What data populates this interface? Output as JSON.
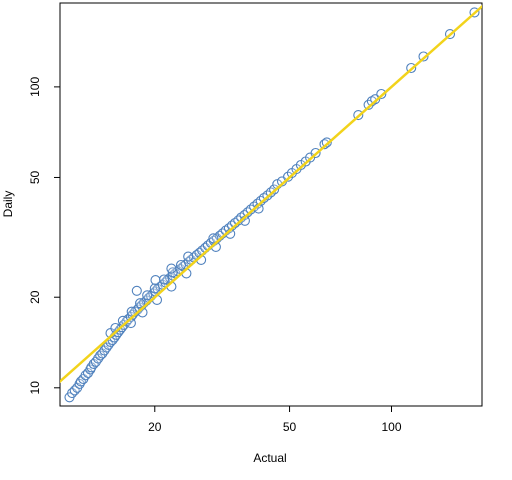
{
  "chart_data": {
    "type": "scatter",
    "title": "",
    "xlabel": "Actual",
    "ylabel": "Daily",
    "x_scale": "log",
    "y_scale": "log",
    "xlim": [
      10.5,
      185
    ],
    "ylim": [
      8.7,
      190
    ],
    "x_ticks": [
      20,
      50,
      100
    ],
    "y_ticks": [
      10,
      20,
      50,
      100
    ],
    "grid": false,
    "colors": {
      "points": "#4f81bd",
      "fit_line": "#f2d31b",
      "axis": "#000000"
    },
    "fit_line": {
      "slope": 1,
      "intercept": 0
    },
    "points": [
      {
        "x": 11.2,
        "y": 9.3
      },
      {
        "x": 11.4,
        "y": 9.6
      },
      {
        "x": 11.6,
        "y": 9.8
      },
      {
        "x": 11.8,
        "y": 10.0
      },
      {
        "x": 12.0,
        "y": 10.3
      },
      {
        "x": 12.1,
        "y": 10.5
      },
      {
        "x": 12.3,
        "y": 10.7
      },
      {
        "x": 12.5,
        "y": 11.0
      },
      {
        "x": 12.7,
        "y": 11.2
      },
      {
        "x": 12.9,
        "y": 11.5
      },
      {
        "x": 13.0,
        "y": 11.7
      },
      {
        "x": 13.2,
        "y": 12.0
      },
      {
        "x": 13.4,
        "y": 12.2
      },
      {
        "x": 13.6,
        "y": 12.5
      },
      {
        "x": 13.8,
        "y": 12.8
      },
      {
        "x": 14.0,
        "y": 13.0
      },
      {
        "x": 14.2,
        "y": 13.3
      },
      {
        "x": 14.4,
        "y": 13.6
      },
      {
        "x": 14.6,
        "y": 13.9
      },
      {
        "x": 14.8,
        "y": 14.2
      },
      {
        "x": 15.0,
        "y": 14.4
      },
      {
        "x": 15.2,
        "y": 14.7
      },
      {
        "x": 15.4,
        "y": 15.0
      },
      {
        "x": 15.6,
        "y": 15.3
      },
      {
        "x": 15.8,
        "y": 15.6
      },
      {
        "x": 16.0,
        "y": 15.9
      },
      {
        "x": 16.2,
        "y": 16.2
      },
      {
        "x": 16.5,
        "y": 16.6
      },
      {
        "x": 16.7,
        "y": 16.9
      },
      {
        "x": 17.0,
        "y": 17.2
      },
      {
        "x": 17.2,
        "y": 17.5
      },
      {
        "x": 17.5,
        "y": 17.9
      },
      {
        "x": 17.8,
        "y": 18.2
      },
      {
        "x": 18.0,
        "y": 18.5
      },
      {
        "x": 18.3,
        "y": 18.8
      },
      {
        "x": 18.6,
        "y": 19.2
      },
      {
        "x": 18.9,
        "y": 19.5
      },
      {
        "x": 19.2,
        "y": 19.9
      },
      {
        "x": 19.5,
        "y": 20.2
      },
      {
        "x": 19.8,
        "y": 20.6
      },
      {
        "x": 20.1,
        "y": 20.9
      },
      {
        "x": 20.4,
        "y": 21.3
      },
      {
        "x": 20.8,
        "y": 21.7
      },
      {
        "x": 21.1,
        "y": 22.0
      },
      {
        "x": 21.5,
        "y": 22.4
      },
      {
        "x": 21.8,
        "y": 22.8
      },
      {
        "x": 22.2,
        "y": 23.2
      },
      {
        "x": 22.6,
        "y": 23.6
      },
      {
        "x": 23.0,
        "y": 24.0
      },
      {
        "x": 23.4,
        "y": 24.4
      },
      {
        "x": 23.8,
        "y": 24.8
      },
      {
        "x": 24.3,
        "y": 25.3
      },
      {
        "x": 24.7,
        "y": 25.7
      },
      {
        "x": 25.2,
        "y": 26.2
      },
      {
        "x": 25.6,
        "y": 26.6
      },
      {
        "x": 26.1,
        "y": 27.1
      },
      {
        "x": 26.6,
        "y": 27.6
      },
      {
        "x": 27.1,
        "y": 28.1
      },
      {
        "x": 27.6,
        "y": 28.6
      },
      {
        "x": 28.2,
        "y": 29.2
      },
      {
        "x": 28.7,
        "y": 29.7
      },
      {
        "x": 29.3,
        "y": 30.3
      },
      {
        "x": 29.9,
        "y": 30.8
      },
      {
        "x": 30.5,
        "y": 31.4
      },
      {
        "x": 31.1,
        "y": 32.0
      },
      {
        "x": 31.7,
        "y": 32.6
      },
      {
        "x": 32.4,
        "y": 33.3
      },
      {
        "x": 33.1,
        "y": 33.9
      },
      {
        "x": 33.8,
        "y": 34.6
      },
      {
        "x": 34.5,
        "y": 35.3
      },
      {
        "x": 35.3,
        "y": 36.0
      },
      {
        "x": 36.0,
        "y": 36.8
      },
      {
        "x": 36.8,
        "y": 37.5
      },
      {
        "x": 37.6,
        "y": 38.3
      },
      {
        "x": 38.4,
        "y": 39.1
      },
      {
        "x": 39.3,
        "y": 40.0
      },
      {
        "x": 40.2,
        "y": 40.9
      },
      {
        "x": 41.1,
        "y": 41.8
      },
      {
        "x": 42.0,
        "y": 42.7
      },
      {
        "x": 43.0,
        "y": 43.6
      },
      {
        "x": 44.0,
        "y": 44.6
      },
      {
        "x": 45.0,
        "y": 45.6
      },
      {
        "x": 14.8,
        "y": 15.2
      },
      {
        "x": 15.3,
        "y": 15.8
      },
      {
        "x": 16.1,
        "y": 16.7
      },
      {
        "x": 17.1,
        "y": 17.9
      },
      {
        "x": 18.1,
        "y": 19.1
      },
      {
        "x": 19.0,
        "y": 20.3
      },
      {
        "x": 20.0,
        "y": 21.4
      },
      {
        "x": 21.3,
        "y": 22.9
      },
      {
        "x": 22.6,
        "y": 24.2
      },
      {
        "x": 23.9,
        "y": 25.6
      },
      {
        "x": 17.0,
        "y": 16.4
      },
      {
        "x": 18.4,
        "y": 17.8
      },
      {
        "x": 20.3,
        "y": 19.6
      },
      {
        "x": 22.4,
        "y": 21.7
      },
      {
        "x": 24.8,
        "y": 24.0
      },
      {
        "x": 27.4,
        "y": 26.6
      },
      {
        "x": 30.3,
        "y": 29.4
      },
      {
        "x": 33.4,
        "y": 32.5
      },
      {
        "x": 36.9,
        "y": 35.9
      },
      {
        "x": 40.5,
        "y": 39.4
      },
      {
        "x": 17.7,
        "y": 21.0
      },
      {
        "x": 20.1,
        "y": 22.8
      },
      {
        "x": 22.4,
        "y": 24.9
      },
      {
        "x": 25.1,
        "y": 27.3
      },
      {
        "x": 29.8,
        "y": 31.4
      },
      {
        "x": 46.0,
        "y": 47.5
      },
      {
        "x": 47.5,
        "y": 48.5
      },
      {
        "x": 49.5,
        "y": 50.3
      },
      {
        "x": 50.8,
        "y": 51.7
      },
      {
        "x": 52.4,
        "y": 53.3
      },
      {
        "x": 54.0,
        "y": 55.0
      },
      {
        "x": 55.8,
        "y": 56.5
      },
      {
        "x": 57.5,
        "y": 58.2
      },
      {
        "x": 59.7,
        "y": 60.3
      },
      {
        "x": 63.4,
        "y": 64.5
      },
      {
        "x": 64.4,
        "y": 65.4
      },
      {
        "x": 79.8,
        "y": 80.6
      },
      {
        "x": 85.6,
        "y": 87.2
      },
      {
        "x": 87.5,
        "y": 89.6
      },
      {
        "x": 89.5,
        "y": 91.0
      },
      {
        "x": 93.3,
        "y": 94.7
      },
      {
        "x": 114.3,
        "y": 115.5
      },
      {
        "x": 124.3,
        "y": 126.2
      },
      {
        "x": 148.8,
        "y": 149.8
      },
      {
        "x": 175.8,
        "y": 176.8
      }
    ]
  }
}
